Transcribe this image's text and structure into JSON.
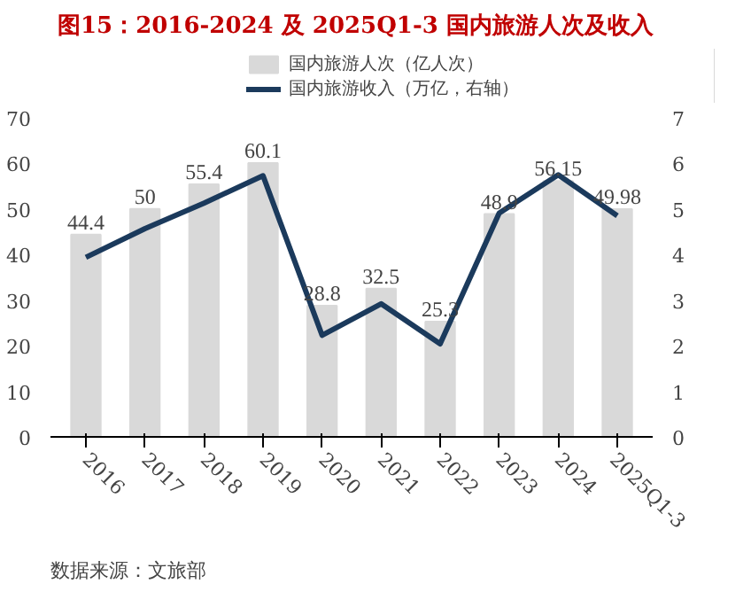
{
  "chart_data": {
    "type": "bar",
    "title": "图15：2016-2024 及 2025Q1-3 国内旅游人次及收入",
    "annotations": [
      "数据来源：文旅部"
    ],
    "categories": [
      "2016",
      "2017",
      "2018",
      "2019",
      "2020",
      "2021",
      "2022",
      "2023",
      "2024",
      "2025Q1-3"
    ],
    "series": [
      {
        "name": "国内旅游人次（亿人次）",
        "color": "#d9d9d9",
        "values": [
          44.4,
          50,
          55.4,
          60.1,
          28.8,
          32.5,
          25.3,
          48.9,
          56.15,
          49.98
        ],
        "data_labels": true
      },
      {
        "name": "国内旅游收入（万亿，右轴）",
        "type": "line",
        "axis": "y2",
        "color": "#1b3a5c",
        "values": [
          3.94,
          4.57,
          5.13,
          5.73,
          2.23,
          2.92,
          2.04,
          4.91,
          5.75,
          4.85
        ]
      }
    ],
    "ylim": [
      0,
      70
    ],
    "yticks": [
      0,
      10,
      20,
      30,
      40,
      50,
      60,
      70
    ],
    "y2lim": [
      0,
      7
    ],
    "y2ticks": [
      0,
      1,
      2,
      3,
      4,
      5,
      6,
      7
    ],
    "grid": false,
    "legend": "top",
    "marker": "none",
    "line_style": "solid"
  }
}
